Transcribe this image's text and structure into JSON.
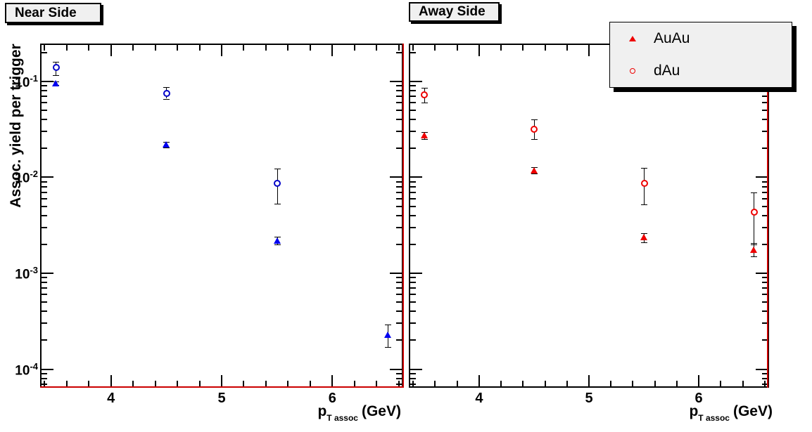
{
  "y_axis_title": "Assoc. yield per trigger",
  "x_axis_title": {
    "symbol": "p",
    "subscript": "T assoc",
    "unit": "(GeV)"
  },
  "panels": [
    {
      "title": "Near Side"
    },
    {
      "title": "Away Side"
    }
  ],
  "legend": {
    "entries": [
      {
        "label": "AuAu",
        "marker": "filled-triangle",
        "color": "#ee0000"
      },
      {
        "label": "dAu",
        "marker": "open-circle",
        "color": "#ee0000"
      }
    ]
  },
  "colors": {
    "near_auau_marker": "#0000f0",
    "near_dau_marker": "#0000c8",
    "away_marker": "#ee0000",
    "frame": "#000000",
    "error_bar": "#000000",
    "red_frame_line": "#cc0000",
    "box_fill": "#f0f0f0"
  },
  "chart_data": [
    {
      "type": "scatter",
      "title": "Near Side",
      "xlabel": "p_T assoc (GeV)",
      "ylabel": "Assoc. yield per trigger",
      "yscale": "log",
      "xlim": [
        3.36,
        6.64
      ],
      "ylim": [
        6.4e-05,
        0.248
      ],
      "x_major_ticks": [
        4,
        5,
        6
      ],
      "x_minor_step": 0.2,
      "y_major_tick_exponents": [
        -1,
        -2,
        -3,
        -4
      ],
      "grid": false,
      "series": [
        {
          "name": "AuAu",
          "marker": "filled-triangle",
          "color": "#0000f0",
          "x": [
            3.5,
            4.5,
            5.5,
            6.5
          ],
          "y": [
            0.095,
            0.022,
            0.0022,
            0.00023
          ],
          "y_lower": [
            0.091,
            0.0205,
            0.002,
            0.00017
          ],
          "y_upper": [
            0.1,
            0.0235,
            0.0024,
            0.00029
          ]
        },
        {
          "name": "dAu",
          "marker": "open-circle",
          "color": "#0000c8",
          "x": [
            3.5,
            4.5,
            5.5
          ],
          "y": [
            0.141,
            0.076,
            0.0088
          ],
          "y_lower": [
            0.117,
            0.066,
            0.0053
          ],
          "y_upper": [
            0.16,
            0.087,
            0.0124
          ]
        }
      ]
    },
    {
      "type": "scatter",
      "title": "Away Side",
      "xlabel": "p_T assoc (GeV)",
      "ylabel": "Assoc. yield per trigger",
      "yscale": "log",
      "xlim": [
        3.36,
        6.64
      ],
      "ylim": [
        6.4e-05,
        0.248
      ],
      "x_major_ticks": [
        4,
        5,
        6
      ],
      "x_minor_step": 0.2,
      "y_major_tick_exponents": [
        -1,
        -2,
        -3,
        -4
      ],
      "grid": false,
      "series": [
        {
          "name": "AuAu",
          "marker": "filled-triangle",
          "color": "#ee0000",
          "x": [
            3.5,
            4.5,
            5.5,
            6.5
          ],
          "y": [
            0.0273,
            0.0118,
            0.0024,
            0.00175
          ],
          "y_lower": [
            0.0252,
            0.0109,
            0.0021,
            0.00151
          ],
          "y_upper": [
            0.0295,
            0.0127,
            0.0026,
            0.00205
          ]
        },
        {
          "name": "dAu",
          "marker": "open-circle",
          "color": "#ee0000",
          "x": [
            3.5,
            4.5,
            5.5,
            6.5
          ],
          "y": [
            0.073,
            0.032,
            0.0088,
            0.0044
          ],
          "y_lower": [
            0.06,
            0.025,
            0.0052,
            0.002
          ],
          "y_upper": [
            0.086,
            0.04,
            0.0125,
            0.007
          ]
        }
      ]
    }
  ]
}
